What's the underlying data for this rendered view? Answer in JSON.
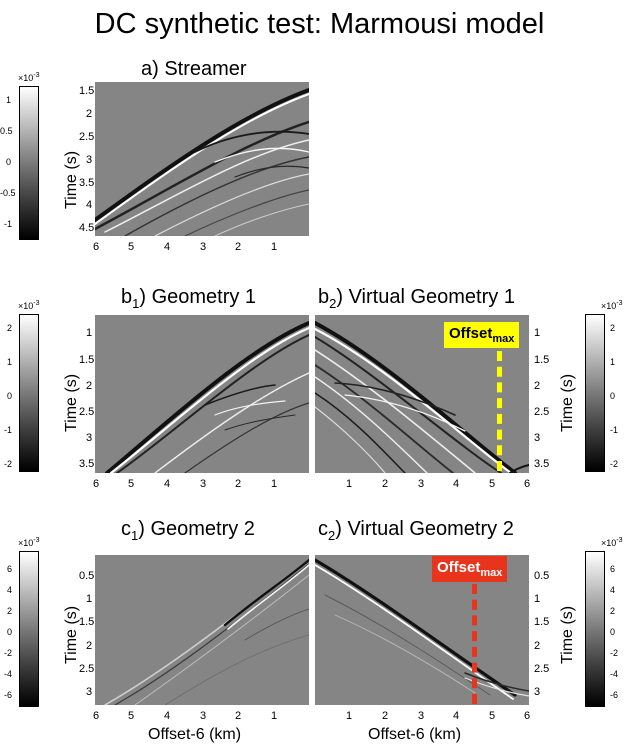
{
  "title": "DC synthetic test: Marmousi model",
  "colors": {
    "offset_yellow": "#ffff00",
    "offset_red": "#e8341c",
    "seismic_bg": "#858585"
  },
  "panels": {
    "a": {
      "title": "a) Streamer",
      "ylabel": "Time (s)",
      "yticks": [
        "1.5",
        "2",
        "2.5",
        "3",
        "3.5",
        "4",
        "4.5"
      ],
      "xticks": [
        "6",
        "5",
        "4",
        "3",
        "2",
        "1"
      ]
    },
    "b1": {
      "title_prefix": "b",
      "title_sub": "1",
      "title_rest": ") Geometry 1",
      "ylabel": "Time (s)",
      "yticks": [
        "1",
        "1.5",
        "2",
        "2.5",
        "3",
        "3.5"
      ],
      "xticks": [
        "6",
        "5",
        "4",
        "3",
        "2",
        "1"
      ]
    },
    "b2": {
      "title_prefix": "b",
      "title_sub": "2",
      "title_rest": ") Virtual Geometry 1",
      "ylabel": "Time (s)",
      "yticks": [
        "1",
        "1.5",
        "2",
        "2.5",
        "3",
        "3.5"
      ],
      "xticks": [
        "1",
        "2",
        "3",
        "4",
        "5",
        "6"
      ],
      "offset_label": "Offset",
      "offset_sub": "max"
    },
    "c1": {
      "title_prefix": "c",
      "title_sub": "1",
      "title_rest": ") Geometry 2",
      "ylabel": "Time (s)",
      "yticks": [
        "0.5",
        "1",
        "1.5",
        "2",
        "2.5",
        "3"
      ],
      "xticks": [
        "6",
        "5",
        "4",
        "3",
        "2",
        "1"
      ],
      "xlabel": "Offset-6 (km)"
    },
    "c2": {
      "title_prefix": "c",
      "title_sub": "2",
      "title_rest": ") Virtual Geometry 2",
      "ylabel": "Time (s)",
      "yticks": [
        "0.5",
        "1",
        "1.5",
        "2",
        "2.5",
        "3"
      ],
      "xticks": [
        "1",
        "2",
        "3",
        "4",
        "5",
        "6"
      ],
      "xlabel": "Offset-6 (km)",
      "offset_label": "Offset",
      "offset_sub": "max"
    }
  },
  "colorbars": {
    "a": {
      "multiplier_base": "×10",
      "multiplier_exp": "-3",
      "ticks": [
        "1",
        "0.5",
        "0",
        "-0.5",
        "-1"
      ]
    },
    "b1": {
      "multiplier_base": "×10",
      "multiplier_exp": "-3",
      "ticks": [
        "2",
        "1",
        "0",
        "-1",
        "-2"
      ]
    },
    "b2": {
      "multiplier_base": "×10",
      "multiplier_exp": "-3",
      "ticks": [
        "2",
        "1",
        "0",
        "-1",
        "-2"
      ]
    },
    "c1": {
      "multiplier_base": "×10",
      "multiplier_exp": "-3",
      "ticks": [
        "6",
        "4",
        "2",
        "0",
        "-2",
        "-4",
        "-6"
      ]
    },
    "c2": {
      "multiplier_base": "×10",
      "multiplier_exp": "-3",
      "ticks": [
        "6",
        "4",
        "2",
        "0",
        "-2",
        "-4",
        "-6"
      ]
    }
  }
}
